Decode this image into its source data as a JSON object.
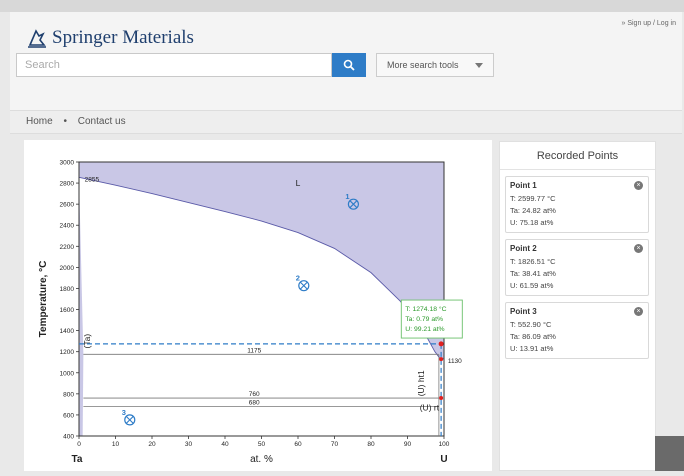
{
  "app": {
    "logo_brand": "Springer",
    "logo_product": "Materials",
    "signup": "» Sign up / Log in"
  },
  "search": {
    "placeholder": "Search",
    "more_tools_label": "More search tools"
  },
  "breadcrumb": {
    "home": "Home",
    "sep": "•",
    "contact": "Contact us"
  },
  "sidebar": {
    "title": "Recorded Points",
    "points": [
      {
        "name": "Point 1",
        "t": "T: 2599.77 °C",
        "ta": "Ta: 24.82 at%",
        "u": "U: 75.18 at%"
      },
      {
        "name": "Point 2",
        "t": "T: 1826.51 °C",
        "ta": "Ta: 38.41 at%",
        "u": "U: 61.59 at%"
      },
      {
        "name": "Point 3",
        "t": "T: 552.90 °C",
        "ta": "Ta: 86.09 at%",
        "u": "U: 13.91 at%"
      }
    ]
  },
  "tooltip": {
    "t": "T: 1274.18 °C",
    "ta": "Ta: 0.79 at%",
    "u": "U: 99.21 at%"
  },
  "chart_data": {
    "type": "line",
    "xlabel": "at. %",
    "ylabel": "Temperature, °C",
    "x_left_element": "Ta",
    "x_right_element": "U",
    "xlim": [
      0,
      100
    ],
    "ylim": [
      400,
      3000
    ],
    "x_ticks": [
      0,
      10,
      20,
      30,
      40,
      50,
      60,
      70,
      80,
      90,
      100
    ],
    "y_ticks": [
      400,
      600,
      800,
      1000,
      1200,
      1400,
      1600,
      1800,
      2000,
      2200,
      2400,
      2600,
      2800,
      3000
    ],
    "liquidus": [
      [
        0,
        2855
      ],
      [
        10,
        2780
      ],
      [
        20,
        2700
      ],
      [
        30,
        2615
      ],
      [
        40,
        2530
      ],
      [
        50,
        2440
      ],
      [
        60,
        2330
      ],
      [
        70,
        2180
      ],
      [
        80,
        1950
      ],
      [
        88,
        1680
      ],
      [
        94,
        1420
      ],
      [
        97.5,
        1200
      ],
      [
        99,
        1130
      ],
      [
        100,
        1132
      ]
    ],
    "phase_labels": [
      {
        "text": "L",
        "x": 60,
        "y": 2770
      },
      {
        "text": "(Ta)",
        "x": 3,
        "y": 1300
      },
      {
        "text": "(U)",
        "x": 96.5,
        "y": 1430
      },
      {
        "text": "(U) ht1",
        "x": 94.5,
        "y": 900
      },
      {
        "text": "(U) rt",
        "x": 96,
        "y": 640
      }
    ],
    "isotherms": [
      {
        "temperature": 1175,
        "label": "1175"
      },
      {
        "temperature": 760,
        "label": "760"
      },
      {
        "temperature": 680,
        "label": "680"
      }
    ],
    "point_labels": [
      {
        "text": "2855",
        "x": 1,
        "y": 2855
      },
      {
        "text": "1130",
        "x": 100.5,
        "y": 1130
      }
    ],
    "recorded_points": [
      {
        "label": "1",
        "x": 75.18,
        "y": 2599.77
      },
      {
        "label": "2",
        "x": 61.59,
        "y": 1826.51
      },
      {
        "label": "3",
        "x": 13.91,
        "y": 552.9
      }
    ],
    "crosshair": {
      "x": 99.21,
      "y": 1274.18
    }
  },
  "colors": {
    "accent": "#2e7cc7",
    "region": "#c9c7e6",
    "boundary": "#5a5aa8"
  }
}
